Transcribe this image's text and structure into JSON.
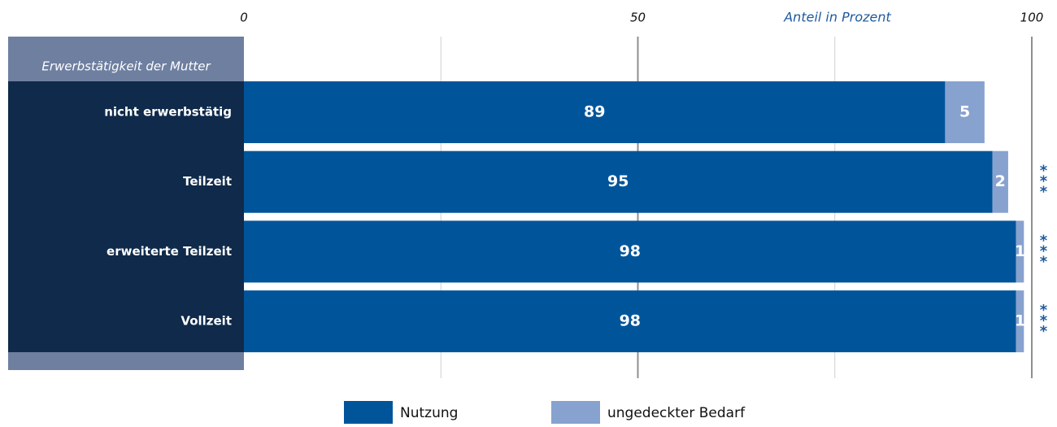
{
  "chart_data": {
    "type": "stacked-barh",
    "ylabel": "Erwerbstätigkeit der Mutter",
    "xlabel": "Anteil in Prozent",
    "categories": [
      "nicht erwerbstätig",
      "Teilzeit",
      "erweiterte Teilzeit",
      "Vollzeit"
    ],
    "series": [
      {
        "name": "Nutzung",
        "color": "#00559a",
        "values": [
          89,
          95,
          98,
          98
        ]
      },
      {
        "name": "ungedeckter Bedarf",
        "color": "#88a2cf",
        "values": [
          5,
          2,
          1,
          1
        ]
      }
    ],
    "significance": [
      null,
      "***",
      "***",
      "***"
    ],
    "xlim": [
      0,
      100
    ],
    "xticks": [
      0,
      50,
      100
    ],
    "xgrid": [
      25,
      50,
      75,
      100
    ]
  }
}
